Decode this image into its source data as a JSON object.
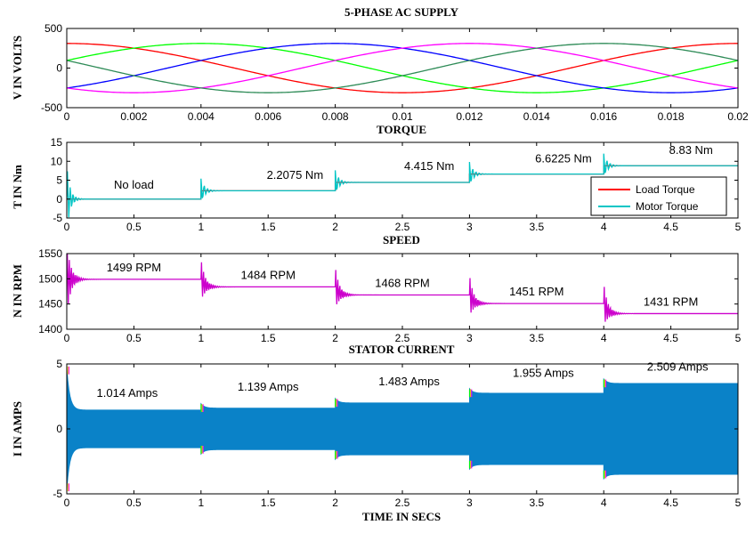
{
  "chart_data": [
    {
      "type": "line",
      "title": "5-PHASE AC SUPPLY",
      "xlabel": "",
      "ylabel": "V IN VOLTS",
      "xlim": [
        0,
        0.02
      ],
      "ylim": [
        -500,
        500
      ],
      "x_ticks": [
        "0",
        "0.002",
        "0.004",
        "0.006",
        "0.008",
        "0.01",
        "0.012",
        "0.014",
        "0.016",
        "0.018",
        "0.02"
      ],
      "y_ticks": [
        "500",
        "0",
        "-500"
      ],
      "amplitude": 311,
      "frequency_hz": 50,
      "series": [
        {
          "phase_deg": 90,
          "color": "#ff0000"
        },
        {
          "phase_deg": 18,
          "color": "#00ff00"
        },
        {
          "phase_deg": -54,
          "color": "#0000ff"
        },
        {
          "phase_deg": -126,
          "color": "#ff00ff"
        },
        {
          "phase_deg": 162,
          "color": "#2e8b57"
        }
      ]
    },
    {
      "type": "line",
      "title": "TORQUE",
      "xlabel": "",
      "ylabel": "T IN Nm",
      "xlim": [
        0,
        5
      ],
      "ylim": [
        -5,
        15
      ],
      "x_ticks": [
        "0",
        "0.5",
        "1",
        "1.5",
        "2",
        "2.5",
        "3",
        "3.5",
        "4",
        "4.5",
        "5"
      ],
      "y_ticks": [
        "15",
        "10",
        "5",
        "0",
        "-5"
      ],
      "steps": [
        {
          "t": 0,
          "value": 0
        },
        {
          "t": 1,
          "value": 2.2075
        },
        {
          "t": 2,
          "value": 4.415
        },
        {
          "t": 3,
          "value": 6.6225
        },
        {
          "t": 4,
          "value": 8.83
        }
      ],
      "series": [
        {
          "name": "Load Torque",
          "color": "#ff0000"
        },
        {
          "name": "Motor Torque",
          "color": "#00c5c5"
        }
      ],
      "legend_position": "bottom-right",
      "annotations": [
        {
          "text": "No load",
          "x": 0.5,
          "y": 2.8
        },
        {
          "text": "2.2075 Nm",
          "x": 1.7,
          "y": 5.3
        },
        {
          "text": "4.415 Nm",
          "x": 2.7,
          "y": 7.7
        },
        {
          "text": "6.6225 Nm",
          "x": 3.7,
          "y": 9.7
        },
        {
          "text": "8.83 Nm",
          "x": 4.65,
          "y": 11.9
        }
      ]
    },
    {
      "type": "line",
      "title": "SPEED",
      "xlabel": "",
      "ylabel": "N IN RPM",
      "xlim": [
        0,
        5
      ],
      "ylim": [
        1400,
        1550
      ],
      "x_ticks": [
        "0",
        "0.5",
        "1",
        "1.5",
        "2",
        "2.5",
        "3",
        "3.5",
        "4",
        "4.5",
        "5"
      ],
      "y_ticks": [
        "1550",
        "1500",
        "1450",
        "1400"
      ],
      "color": "#cc00cc",
      "steps": [
        {
          "t": 0,
          "value": 1499
        },
        {
          "t": 1,
          "value": 1484
        },
        {
          "t": 2,
          "value": 1468
        },
        {
          "t": 3,
          "value": 1451
        },
        {
          "t": 4,
          "value": 1431
        }
      ],
      "annotations": [
        {
          "text": "1499 RPM",
          "x": 0.5,
          "y": 1515
        },
        {
          "text": "1484 RPM",
          "x": 1.5,
          "y": 1500
        },
        {
          "text": "1468 RPM",
          "x": 2.5,
          "y": 1484
        },
        {
          "text": "1451 RPM",
          "x": 3.5,
          "y": 1467
        },
        {
          "text": "1431 RPM",
          "x": 4.5,
          "y": 1447
        }
      ]
    },
    {
      "type": "area",
      "title": "STATOR CURRENT",
      "xlabel": "TIME IN SECS",
      "ylabel": "I IN AMPS",
      "xlim": [
        0,
        5
      ],
      "ylim": [
        -5,
        5
      ],
      "x_ticks": [
        "0",
        "0.5",
        "1",
        "1.5",
        "2",
        "2.5",
        "3",
        "3.5",
        "4",
        "4.5",
        "5"
      ],
      "y_ticks": [
        "5",
        "0",
        "-5"
      ],
      "color": "#0a82c8",
      "envelope": [
        {
          "t": 0,
          "amplitude": 1.45
        },
        {
          "t": 1,
          "amplitude": 1.6
        },
        {
          "t": 2,
          "amplitude": 2.0
        },
        {
          "t": 3,
          "amplitude": 2.75
        },
        {
          "t": 4,
          "amplitude": 3.5
        }
      ],
      "annotations": [
        {
          "text": "1.014 Amps",
          "x": 0.45,
          "y": 2.45
        },
        {
          "text": "1.139 Amps",
          "x": 1.5,
          "y": 2.95
        },
        {
          "text": "1.483 Amps",
          "x": 2.55,
          "y": 3.35
        },
        {
          "text": "1.955 Amps",
          "x": 3.55,
          "y": 4.0
        },
        {
          "text": "2.509 Amps",
          "x": 4.55,
          "y": 4.5
        }
      ]
    }
  ]
}
